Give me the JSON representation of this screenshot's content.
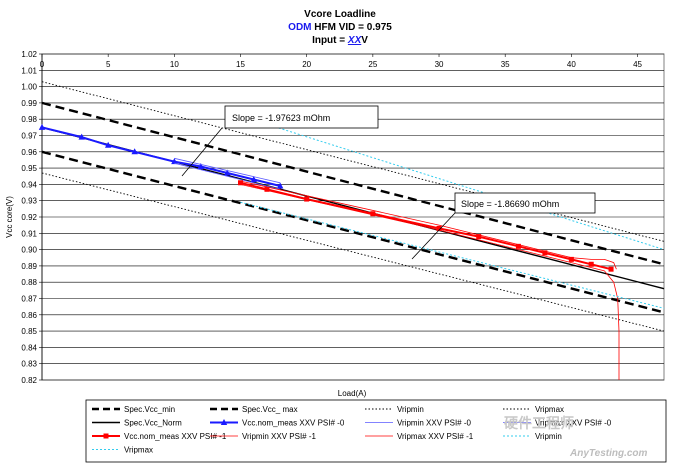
{
  "chart_data": {
    "type": "line",
    "title": {
      "line1": "Vcore Loadline",
      "line2_odm": "ODM",
      "line2_rest": " HFM VID = 0.975",
      "line3_prefix": "Input = ",
      "line3_xx": "XX",
      "line3_suffix": "V"
    },
    "xlabel": "Load(A)",
    "ylabel": "Vcc core(V)",
    "xlim": [
      0,
      47
    ],
    "ylim": [
      0.82,
      1.02
    ],
    "x_ticks": [
      0,
      5,
      10,
      15,
      20,
      25,
      30,
      35,
      40,
      45
    ],
    "y_ticks": [
      0.82,
      0.83,
      0.84,
      0.85,
      0.86,
      0.87,
      0.88,
      0.89,
      0.9,
      0.91,
      0.92,
      0.93,
      0.94,
      0.95,
      0.96,
      0.97,
      0.98,
      0.99,
      1.0,
      1.01,
      1.02
    ],
    "x_tick_labels": [
      "0",
      "5",
      "10",
      "15",
      "20",
      "25",
      "30",
      "35",
      "40",
      "45"
    ],
    "y_tick_labels": [
      "0.82",
      "0.83",
      "0.84",
      "0.85",
      "0.86",
      "0.87",
      "0.88",
      "0.89",
      "0.90",
      "0.91",
      "0.92",
      "0.93",
      "0.94",
      "0.95",
      "0.96",
      "0.97",
      "0.98",
      "0.99",
      "1.00",
      "1.01",
      "1.02"
    ],
    "grid": "horizontal",
    "legend_placement": "bottom",
    "series": [
      {
        "name": "Spec.Vcc_min",
        "style": "dash",
        "color": "#000000",
        "x": [
          0,
          47
        ],
        "y": [
          0.96,
          0.8615
        ]
      },
      {
        "name": "Spec.Vcc_ max",
        "style": "dash",
        "color": "#000000",
        "x": [
          0,
          47
        ],
        "y": [
          0.99,
          0.891
        ]
      },
      {
        "name": "Vripmin",
        "style": "dot",
        "color": "#000000",
        "x": [
          0,
          47
        ],
        "y": [
          0.947,
          0.85
        ]
      },
      {
        "name": "Vripmax",
        "style": "dot",
        "color": "#000000",
        "x": [
          0,
          47
        ],
        "y": [
          1.003,
          0.905
        ]
      },
      {
        "name": "Spec.Vcc_Norm",
        "style": "solid",
        "color": "#000000",
        "x": [
          0,
          47
        ],
        "y": [
          0.975,
          0.876
        ]
      },
      {
        "name": "Vcc.nom_meas XXV PSI# -0",
        "style": "solid-marker",
        "color": "#1a1aff",
        "marker": "triangle",
        "x": [
          0,
          3,
          5,
          7,
          10,
          12,
          14,
          16,
          18
        ],
        "y": [
          0.975,
          0.969,
          0.964,
          0.96,
          0.954,
          0.951,
          0.947,
          0.943,
          0.939
        ]
      },
      {
        "name": "Vripmin XXV PSI# -0",
        "style": "thin",
        "color": "#5a5aff",
        "x": [
          10,
          18
        ],
        "y": [
          0.953,
          0.937
        ]
      },
      {
        "name": "Vripmax XXV PSI# -0",
        "style": "thin",
        "color": "#5a5aff",
        "x": [
          10,
          18
        ],
        "y": [
          0.956,
          0.941
        ]
      },
      {
        "name": "Vcc.nom_meas XXV PSI# -1",
        "style": "solid-marker",
        "color": "#ff0000",
        "marker": "square",
        "x": [
          15,
          17,
          20,
          25,
          30,
          33,
          36,
          38,
          40,
          41.5,
          43
        ],
        "y": [
          0.941,
          0.937,
          0.931,
          0.922,
          0.913,
          0.908,
          0.902,
          0.898,
          0.894,
          0.891,
          0.888
        ]
      },
      {
        "name": "Vripmin XXV PSI# -1",
        "style": "thin",
        "color": "#ff0000",
        "x": [
          15,
          30,
          40,
          42.5,
          43.2,
          43.5,
          43.6,
          43.6
        ],
        "y": [
          0.94,
          0.912,
          0.892,
          0.887,
          0.88,
          0.87,
          0.85,
          0.82
        ]
      },
      {
        "name": "Vripmax XXV PSI# -1",
        "style": "thin",
        "color": "#ff0000",
        "x": [
          15,
          30,
          40,
          41.5,
          42.5,
          43.2,
          43.4
        ],
        "y": [
          0.942,
          0.915,
          0.895,
          0.894,
          0.894,
          0.892,
          0.888
        ]
      },
      {
        "name": "Vripmin",
        "style": "dot-cyan",
        "color": "#33ccee",
        "x": [
          15,
          47
        ],
        "y": [
          0.929,
          0.864
        ]
      },
      {
        "name": "Vripmax",
        "style": "dot-cyan",
        "color": "#33ccee",
        "x": [
          15,
          47
        ],
        "y": [
          0.982,
          0.9
        ]
      }
    ],
    "annotations": [
      {
        "text": "Slope = -1.97623 mOhm",
        "pointer_x": 10.5,
        "pointer_y": 0.943
      },
      {
        "text": "Slope = -1.86690 mOhm",
        "pointer_x": 28.5,
        "pointer_y": 0.896
      }
    ],
    "legend_columns": 4
  },
  "watermark": {
    "line1": "硬件工程师",
    "line2": "AnyTesting.com"
  },
  "colors": {
    "grid": "#000000",
    "background": "#ffffff"
  }
}
